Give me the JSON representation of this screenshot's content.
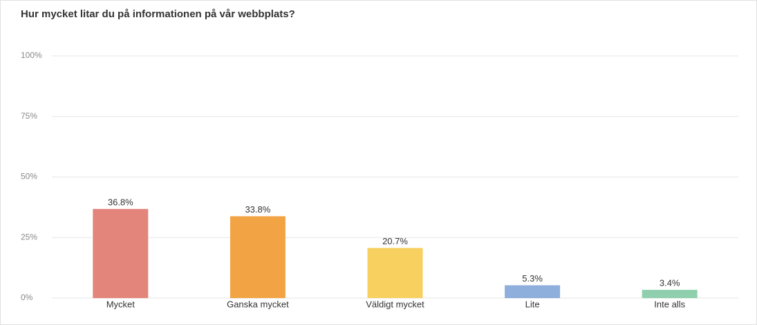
{
  "chart_data": {
    "type": "bar",
    "title": "Hur mycket litar du på informationen på vår webbplats?",
    "categories": [
      "Mycket",
      "Ganska mycket",
      "Väldigt mycket",
      "Lite",
      "Inte alls"
    ],
    "values": [
      36.8,
      33.8,
      20.7,
      5.3,
      3.4
    ],
    "value_labels": [
      "36.8%",
      "33.8%",
      "20.7%",
      "5.3%",
      "3.4%"
    ],
    "colors": [
      "#e3857a",
      "#f2a444",
      "#f7d060",
      "#8eaedc",
      "#8fcfae"
    ],
    "ylim": [
      0,
      100
    ],
    "yticks": [
      {
        "value": 0,
        "label": "0%"
      },
      {
        "value": 25,
        "label": "25%"
      },
      {
        "value": 50,
        "label": "50%"
      },
      {
        "value": 75,
        "label": "75%"
      },
      {
        "value": 100,
        "label": "100%"
      }
    ],
    "grid": true
  }
}
